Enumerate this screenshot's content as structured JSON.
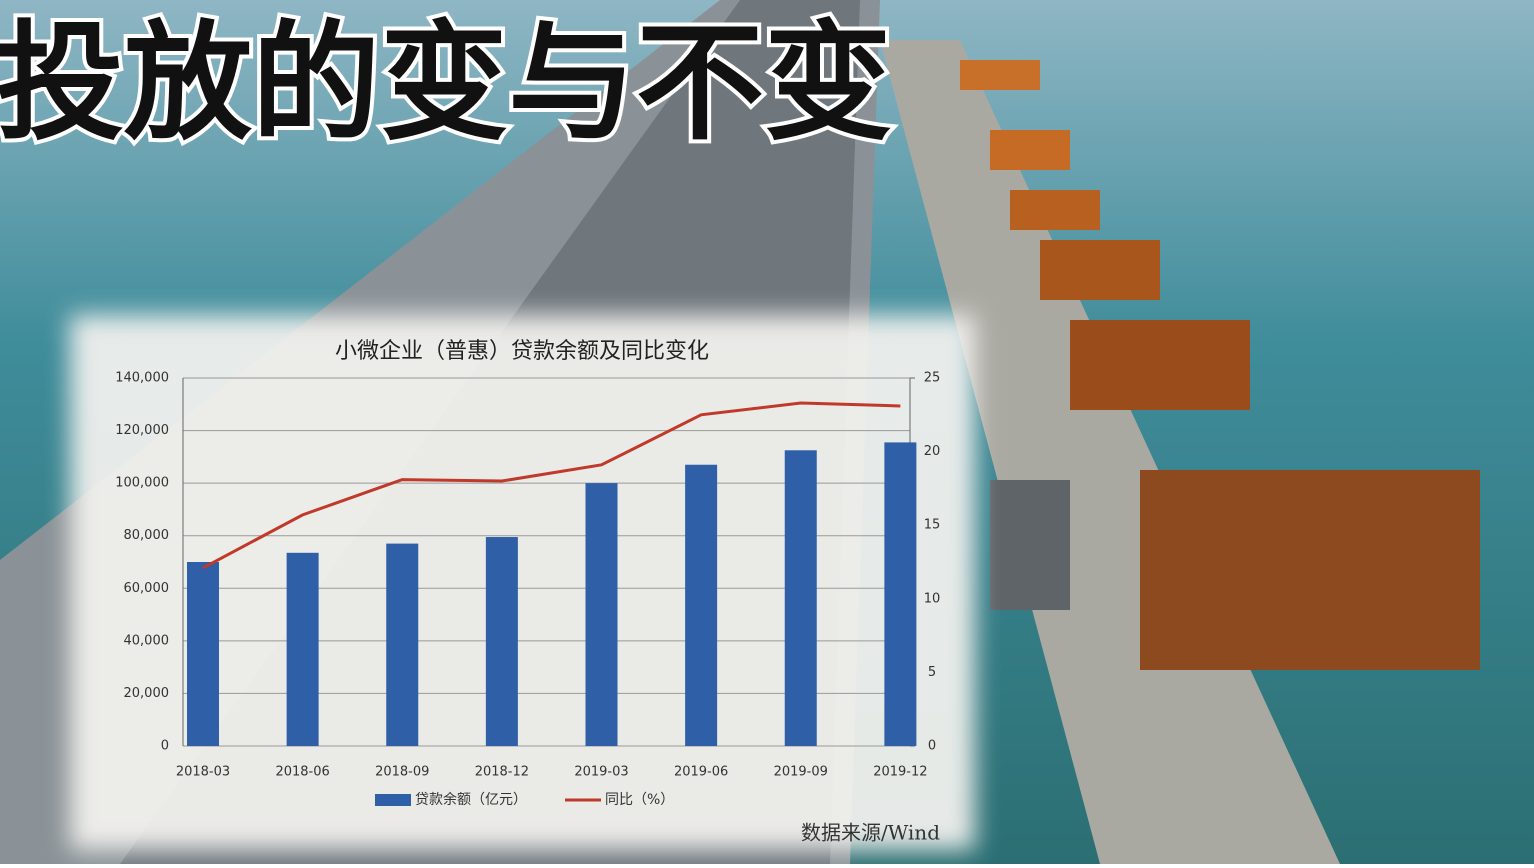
{
  "headline": "投放的变与不变",
  "chart_data": {
    "type": "bar",
    "title": "小微企业（普惠）贷款余额及同比变化",
    "categories": [
      "2018-03",
      "2018-06",
      "2018-09",
      "2018-12",
      "2019-03",
      "2019-06",
      "2019-09",
      "2019-12"
    ],
    "series": [
      {
        "name": "贷款余额（亿元）",
        "type": "bar",
        "color": "#2f5fa7",
        "values": [
          70000,
          73500,
          77000,
          79500,
          100000,
          107000,
          112500,
          115500
        ]
      },
      {
        "name": "同比（%）",
        "type": "line",
        "axis": "y2",
        "color": "#c0392b",
        "values": [
          12.1,
          15.7,
          18.1,
          18.0,
          19.1,
          22.5,
          23.3,
          23.1
        ]
      }
    ],
    "ylim": [
      0,
      140000
    ],
    "yticks": [
      0,
      {
        "value": 20000,
        "label": "20,000"
      },
      {
        "value": 40000,
        "label": "40,000"
      },
      {
        "value": 60000,
        "label": "60,000"
      },
      {
        "value": 80000,
        "label": "80,000"
      },
      {
        "value": 100000,
        "label": "100,000"
      },
      {
        "value": 120000,
        "label": "120,000"
      },
      {
        "value": 140000,
        "label": "140,000"
      }
    ],
    "y2lim": [
      0,
      25
    ],
    "y2ticks": [
      0,
      5,
      10,
      15,
      20,
      25
    ],
    "grid": true,
    "legend": "bottom"
  },
  "source": "数据来源/Wind"
}
